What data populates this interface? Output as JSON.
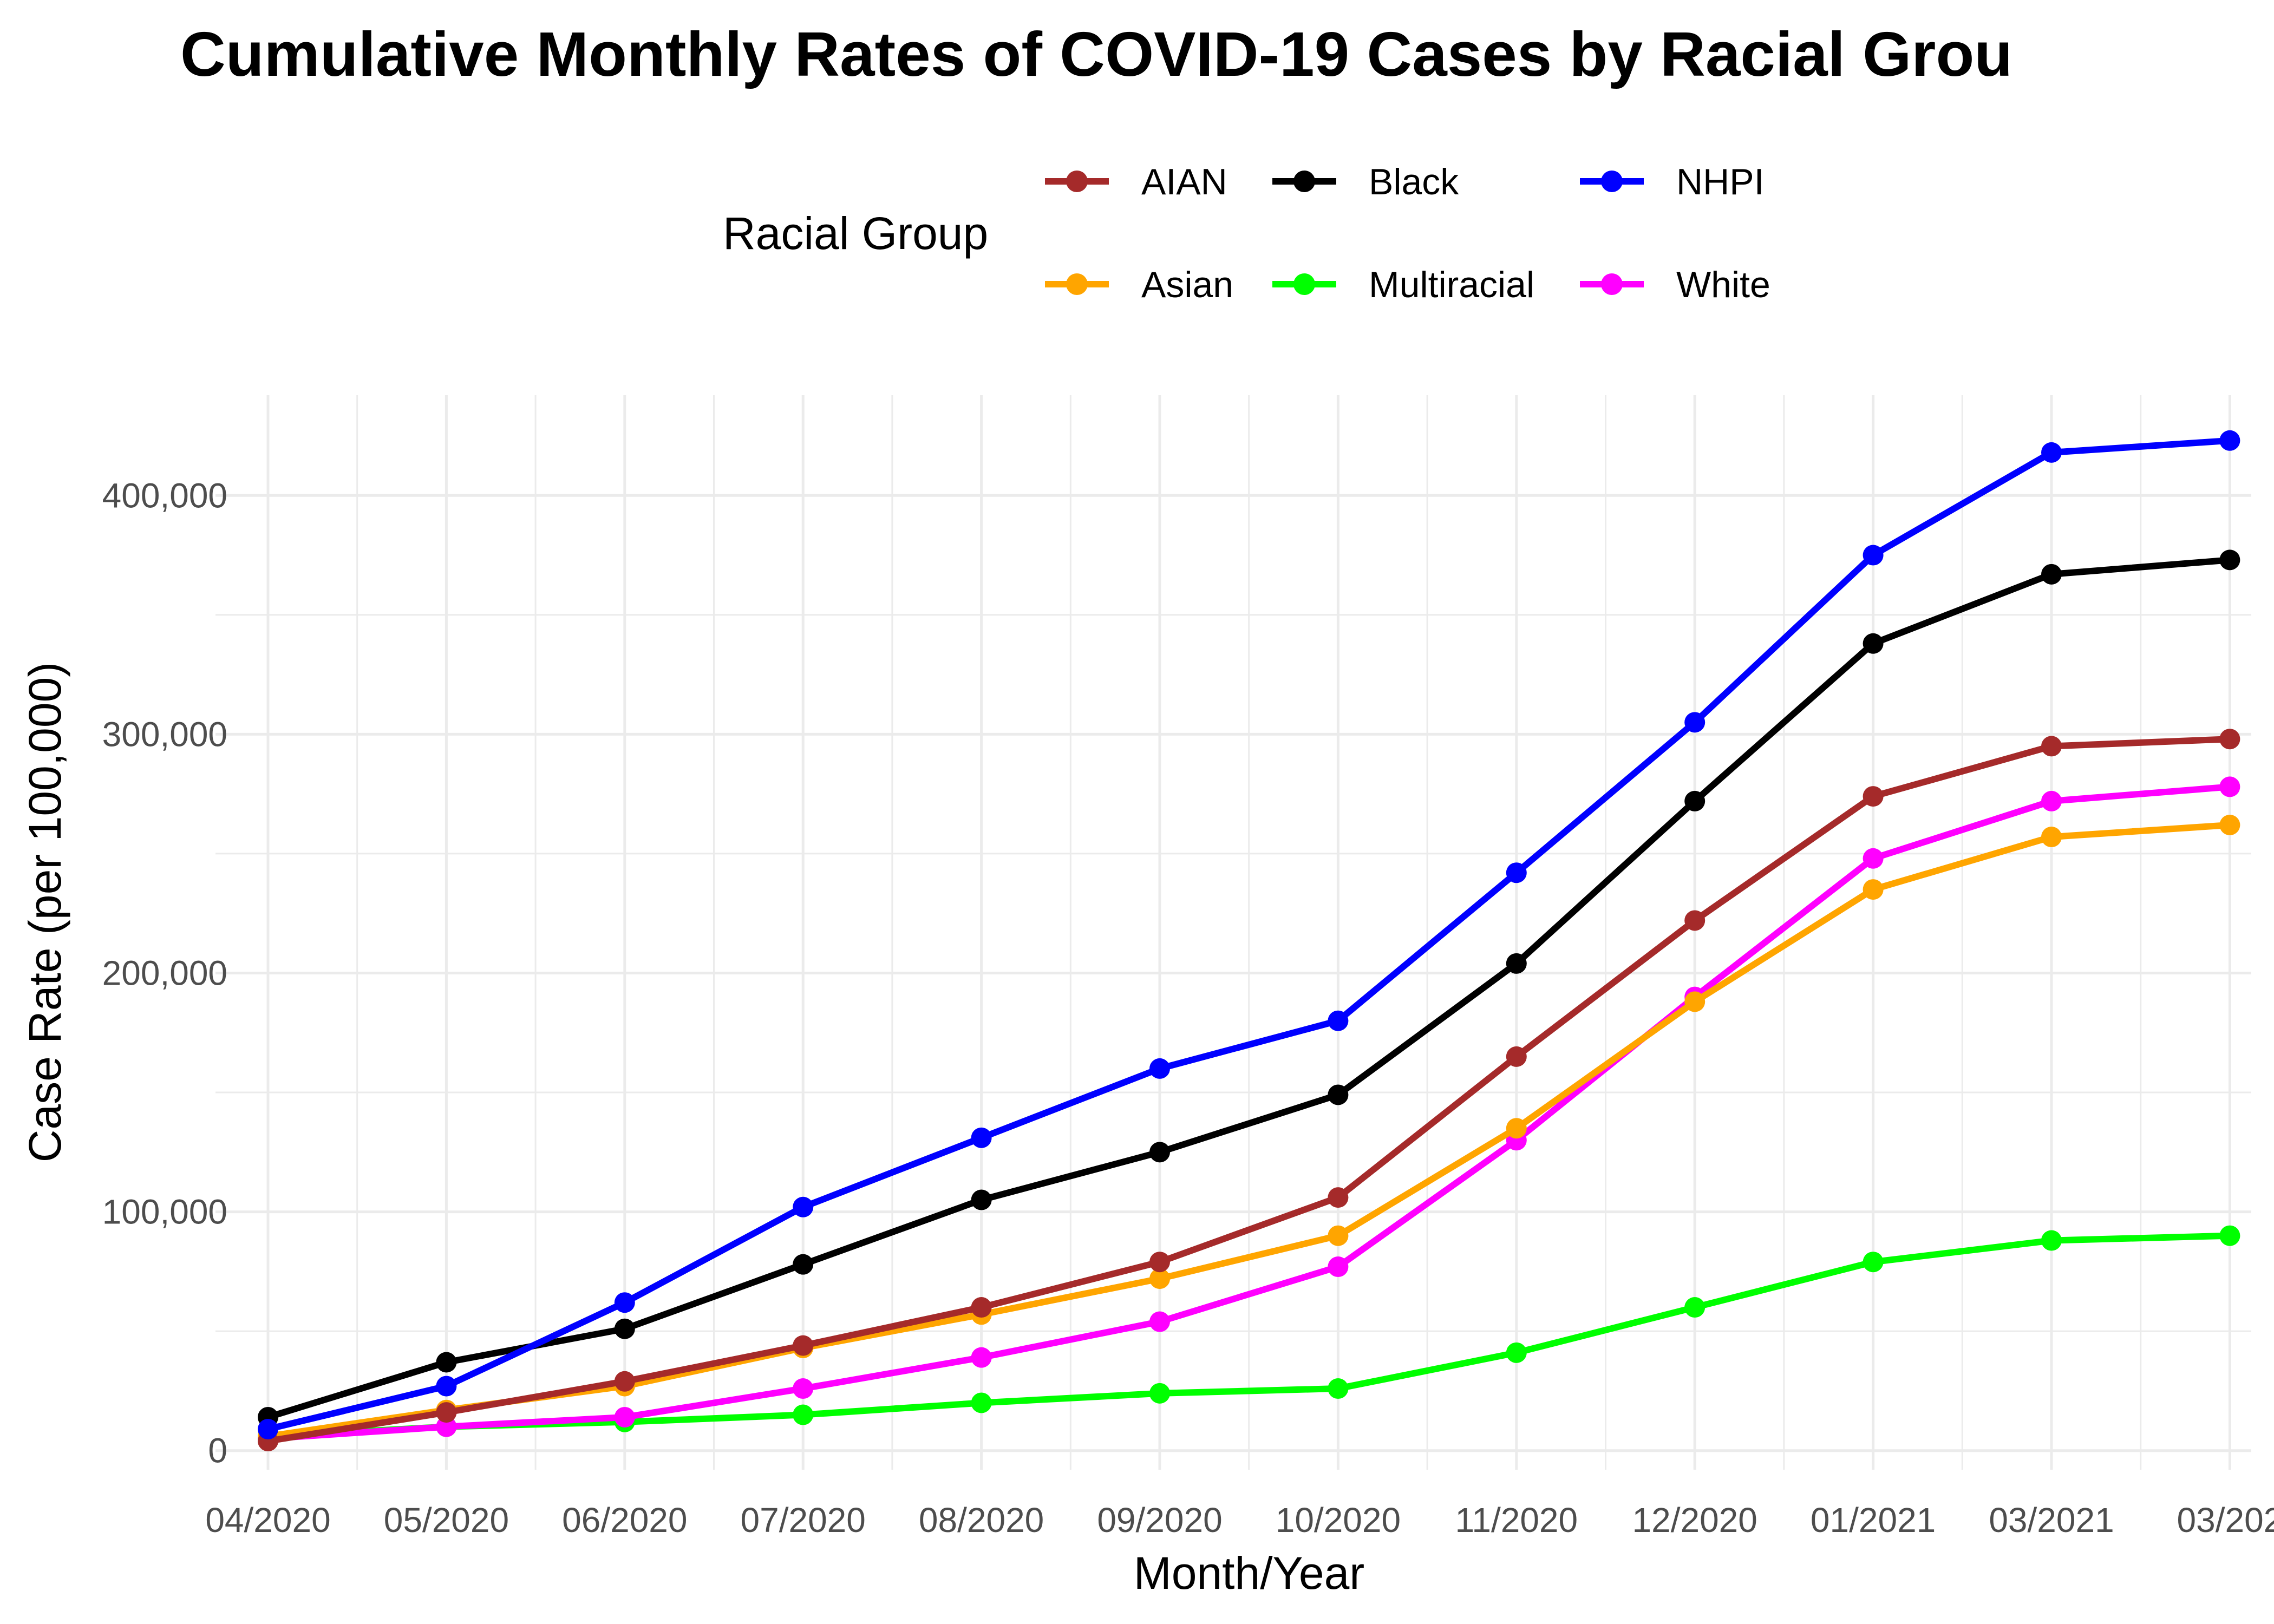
{
  "chart_data": {
    "type": "line",
    "title": "Cumulative Monthly Rates of COVID-19 Cases by Racial Grou",
    "xlabel": "Month/Year",
    "ylabel": "Case Rate (per 100,000)",
    "legend_title": "Racial Group",
    "legend_position": "top",
    "grid": true,
    "categories": [
      "04/2020",
      "05/2020",
      "06/2020",
      "07/2020",
      "08/2020",
      "09/2020",
      "10/2020",
      "11/2020",
      "12/2020",
      "01/2021",
      "03/2021",
      "03/202"
    ],
    "ylim": [
      -8000,
      442000
    ],
    "yticks": [
      0,
      100000,
      200000,
      300000,
      400000
    ],
    "ytick_labels": [
      "0",
      "100,000",
      "200,000",
      "300,000",
      "400,000"
    ],
    "series": [
      {
        "name": "AIAN",
        "color": "#A52A2A",
        "values": [
          4000,
          16000,
          29000,
          44000,
          60000,
          79000,
          106000,
          165000,
          222000,
          274000,
          295000,
          298000
        ]
      },
      {
        "name": "Asian",
        "color": "#FFA500",
        "values": [
          6000,
          17000,
          27000,
          43000,
          57000,
          72000,
          90000,
          135000,
          188000,
          235000,
          257000,
          262000
        ]
      },
      {
        "name": "Black",
        "color": "#000000",
        "values": [
          14000,
          37000,
          51000,
          78000,
          105000,
          125000,
          149000,
          204000,
          272000,
          338000,
          367000,
          373000
        ]
      },
      {
        "name": "Multiracial",
        "color": "#00FF00",
        "values": [
          6000,
          10000,
          12000,
          15000,
          20000,
          24000,
          26000,
          41000,
          60000,
          79000,
          88000,
          90000
        ]
      },
      {
        "name": "NHPI",
        "color": "#0000FF",
        "values": [
          9000,
          27000,
          62000,
          102000,
          131000,
          160000,
          180000,
          242000,
          305000,
          375000,
          418000,
          423000
        ]
      },
      {
        "name": "White",
        "color": "#FF00FF",
        "values": [
          5000,
          10000,
          14000,
          26000,
          39000,
          54000,
          77000,
          130000,
          190000,
          248000,
          272000,
          278000
        ]
      }
    ]
  }
}
